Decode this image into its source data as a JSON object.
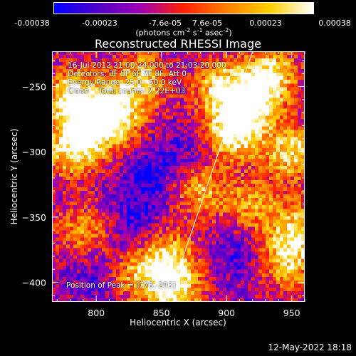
{
  "colorbar": {
    "ticks": [
      "-0.00038",
      "-0.00023",
      "-7.6e-05",
      "7.6e-05",
      "0.00023",
      "0.00038"
    ],
    "tick_values": [
      -0.00038,
      -0.00023,
      -7.6e-05,
      7.6e-05,
      0.00023,
      0.00038
    ],
    "range": [
      -0.00038,
      0.00038
    ],
    "label_parts": [
      "(photons cm",
      "-2",
      " s",
      "-1",
      " asec",
      "-2",
      ")"
    ],
    "colors": [
      "#0000ff",
      "#5000c8",
      "#a000b4",
      "#ff2000",
      "#ff8000",
      "#ffd000",
      "#ffffff"
    ]
  },
  "chart_data": {
    "type": "heatmap",
    "title": "Reconstructed RHESSI Image",
    "xlabel": "Heliocentric X (arcsec)",
    "ylabel": "Heliocentric Y (arcsec)",
    "xlim": [
      766,
      960
    ],
    "ylim": [
      -415,
      -223
    ],
    "x_ticks": [
      800,
      850,
      900,
      950
    ],
    "y_ticks": [
      -250,
      -300,
      -350,
      -400
    ],
    "info_lines": [
      "16-Jul-2012 21:00:24.000 to 21:03:20.000",
      "Detectors: 3F 5F 6F 7F 8F, Att 0",
      "Energy Range: 25.0 - 50.0 keV",
      "Clean    Total counts: 2.22E+03"
    ],
    "peak_text": "Position of Peak = [776,-293]",
    "limb_line": [
      [
        855,
        -415
      ],
      [
        920,
        -223
      ]
    ],
    "hot_regions": [
      {
        "x": 782,
        "y": -258,
        "strength": 0.95
      },
      {
        "x": 796,
        "y": -283,
        "strength": 0.85
      },
      {
        "x": 815,
        "y": -270,
        "strength": 0.9
      },
      {
        "x": 835,
        "y": -245,
        "strength": 0.75
      },
      {
        "x": 780,
        "y": -300,
        "strength": 0.7
      },
      {
        "x": 905,
        "y": -285,
        "strength": 1.0
      },
      {
        "x": 920,
        "y": -262,
        "strength": 0.9
      },
      {
        "x": 895,
        "y": -250,
        "strength": 0.75
      },
      {
        "x": 935,
        "y": -240,
        "strength": 0.8
      },
      {
        "x": 950,
        "y": -300,
        "strength": 0.85
      },
      {
        "x": 955,
        "y": -360,
        "strength": 0.75
      },
      {
        "x": 945,
        "y": -385,
        "strength": 0.7
      },
      {
        "x": 880,
        "y": -330,
        "strength": 0.65
      },
      {
        "x": 855,
        "y": -380,
        "strength": 0.7
      },
      {
        "x": 860,
        "y": -405,
        "strength": 0.9
      },
      {
        "x": 790,
        "y": -360,
        "strength": 0.55
      },
      {
        "x": 920,
        "y": -340,
        "strength": 0.6
      },
      {
        "x": 830,
        "y": -395,
        "strength": 0.55
      }
    ],
    "cold_regions": [
      {
        "x": 840,
        "y": -320,
        "strength": 0.8
      },
      {
        "x": 830,
        "y": -355,
        "strength": 0.6
      },
      {
        "x": 910,
        "y": -380,
        "strength": 0.55
      },
      {
        "x": 800,
        "y": -395,
        "strength": 0.5
      },
      {
        "x": 870,
        "y": -300,
        "strength": 0.45
      }
    ]
  },
  "footer": {
    "date": "12-May-2022 18:18"
  }
}
